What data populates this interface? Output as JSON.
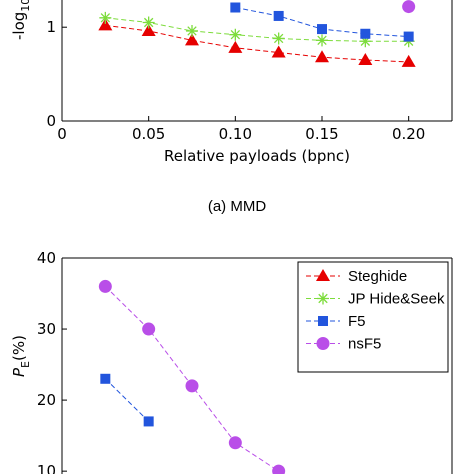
{
  "chart_data": [
    {
      "type": "line",
      "ylabel": "-log",
      "ylabel_sub": "10",
      "xlabel": "Relative payloads (bpnc)",
      "caption": "(a) MMD",
      "x": [
        0.025,
        0.05,
        0.075,
        0.1,
        0.125,
        0.15,
        0.175,
        0.2
      ],
      "xlim": [
        0,
        0.225
      ],
      "xticks": [
        0,
        0.05,
        {
          "value": 0.1,
          "label": "0.10"
        },
        0.15,
        {
          "value": 0.2,
          "label": "0.20"
        }
      ],
      "ylim": [
        0,
        1.29
      ],
      "yticks": [
        0,
        1
      ],
      "series": [
        {
          "name": "Steghide",
          "color": "#e60000",
          "marker": "triangle",
          "values": [
            1.02,
            0.96,
            0.86,
            0.78,
            0.73,
            0.68,
            0.65,
            0.63
          ]
        },
        {
          "name": "JP Hide&Seek",
          "color": "#7ddc3c",
          "marker": "star",
          "values": [
            1.1,
            1.05,
            0.96,
            0.92,
            0.88,
            0.86,
            0.85,
            0.85
          ]
        },
        {
          "name": "F5",
          "color": "#2255dd",
          "marker": "square",
          "values": [
            null,
            null,
            null,
            1.21,
            1.12,
            0.98,
            0.93,
            0.9
          ]
        },
        {
          "name": "nsF5",
          "color": "#b94ee8",
          "marker": "circle",
          "values": [
            null,
            null,
            null,
            null,
            null,
            null,
            null,
            1.22
          ]
        }
      ]
    },
    {
      "type": "line",
      "ylabel": "P",
      "ylabel_sub": "E",
      "ylabel_tail": "(%)",
      "legend": "upper right",
      "x": [
        0.025,
        0.05,
        0.075,
        0.1,
        0.125,
        0.15,
        0.175,
        0.2
      ],
      "xlim": [
        0,
        0.225
      ],
      "ylim": [
        9.6,
        40
      ],
      "yticks": [
        10,
        20,
        30,
        40
      ],
      "series": [
        {
          "name": "Steghide",
          "color": "#e60000",
          "marker": "triangle",
          "values": [
            null,
            null,
            null,
            null,
            null,
            null,
            null,
            null
          ]
        },
        {
          "name": "JP Hide&Seek",
          "color": "#7ddc3c",
          "marker": "star",
          "values": [
            null,
            null,
            null,
            null,
            null,
            null,
            null,
            null
          ]
        },
        {
          "name": "F5",
          "color": "#2255dd",
          "marker": "square",
          "values": [
            23,
            17,
            null,
            null,
            null,
            null,
            null,
            null
          ]
        },
        {
          "name": "nsF5",
          "color": "#b94ee8",
          "marker": "circle",
          "values": [
            36,
            30,
            22,
            14,
            10,
            null,
            null,
            null
          ]
        }
      ]
    }
  ]
}
